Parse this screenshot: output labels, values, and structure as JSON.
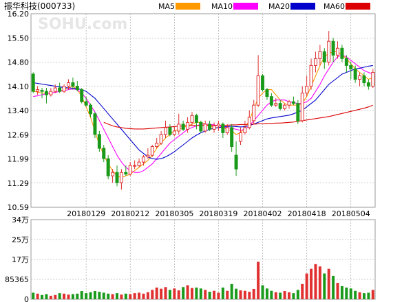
{
  "title": "振华科技(000733)",
  "watermark": "SOHU.com",
  "legend": [
    {
      "name": "MA5",
      "color": "#ff9900"
    },
    {
      "name": "MA10",
      "color": "#ff00ff"
    },
    {
      "name": "MA20",
      "color": "#0000cc"
    },
    {
      "name": "MA60",
      "color": "#dd0000"
    }
  ],
  "colors": {
    "up": "#e03030",
    "down": "#1a9a1a",
    "grid": "#9a9a9a",
    "bg": "#ffffff"
  },
  "chart_data": [
    {
      "type": "candlestick",
      "y_ticks": [
        "16.20",
        "15.50",
        "14.80",
        "14.10",
        "13.40",
        "12.69",
        "11.99",
        "11.29",
        "10.59"
      ],
      "ylim": [
        10.59,
        16.2
      ],
      "x_tick_labels": [
        {
          "label": "20180129",
          "index": 12
        },
        {
          "label": "20180212",
          "index": 22
        },
        {
          "label": "20180305",
          "index": 32
        },
        {
          "label": "20180319",
          "index": 42
        },
        {
          "label": "20180402",
          "index": 52
        },
        {
          "label": "20180418",
          "index": 62
        },
        {
          "label": "20180504",
          "index": 72
        }
      ],
      "candles": [
        [
          14.45,
          13.95,
          14.5,
          13.9
        ],
        [
          13.95,
          14.0,
          14.1,
          13.85
        ],
        [
          13.98,
          13.95,
          14.05,
          13.75
        ],
        [
          13.95,
          13.85,
          14.05,
          13.6
        ],
        [
          13.85,
          13.95,
          14.05,
          13.8
        ],
        [
          13.95,
          14.05,
          14.15,
          13.9
        ],
        [
          14.05,
          13.95,
          14.2,
          13.9
        ],
        [
          13.95,
          14.1,
          14.15,
          13.9
        ],
        [
          14.1,
          14.2,
          14.3,
          14.0
        ],
        [
          14.2,
          14.1,
          14.35,
          14.0
        ],
        [
          14.1,
          14.0,
          14.25,
          13.95
        ],
        [
          14.0,
          13.65,
          14.05,
          13.6
        ],
        [
          13.65,
          13.55,
          13.8,
          13.5
        ],
        [
          13.55,
          13.3,
          13.6,
          13.2
        ],
        [
          13.3,
          12.7,
          13.35,
          12.6
        ],
        [
          12.7,
          12.3,
          12.8,
          12.2
        ],
        [
          12.3,
          12.0,
          12.4,
          11.9
        ],
        [
          12.0,
          11.5,
          12.1,
          11.4
        ],
        [
          11.5,
          11.6,
          11.7,
          11.3
        ],
        [
          11.6,
          11.3,
          11.8,
          11.2
        ],
        [
          11.3,
          11.6,
          11.7,
          11.1
        ],
        [
          11.6,
          11.55,
          11.8,
          11.5
        ],
        [
          11.55,
          11.8,
          11.9,
          11.5
        ],
        [
          11.8,
          11.8,
          11.95,
          11.7
        ],
        [
          11.8,
          11.9,
          12.0,
          11.75
        ],
        [
          11.9,
          12.05,
          12.1,
          11.8
        ],
        [
          12.05,
          12.1,
          12.3,
          12.0
        ],
        [
          12.1,
          12.35,
          12.4,
          12.05
        ],
        [
          12.35,
          12.45,
          12.6,
          12.3
        ],
        [
          12.45,
          12.7,
          12.8,
          12.4
        ],
        [
          12.7,
          12.9,
          13.1,
          12.6
        ],
        [
          12.9,
          12.7,
          13.0,
          12.65
        ],
        [
          12.7,
          12.8,
          12.95,
          12.65
        ],
        [
          12.8,
          13.0,
          13.3,
          12.7
        ],
        [
          13.0,
          12.85,
          13.1,
          12.8
        ],
        [
          12.85,
          13.05,
          13.2,
          12.75
        ],
        [
          13.05,
          13.25,
          13.35,
          12.95
        ],
        [
          13.25,
          13.05,
          13.3,
          12.85
        ],
        [
          13.05,
          12.8,
          13.1,
          12.75
        ],
        [
          12.8,
          13.0,
          13.1,
          12.75
        ],
        [
          13.0,
          12.85,
          13.1,
          12.8
        ],
        [
          12.85,
          12.95,
          13.05,
          12.75
        ],
        [
          12.95,
          13.0,
          13.1,
          12.8
        ],
        [
          13.0,
          12.75,
          13.05,
          12.6
        ],
        [
          12.75,
          12.9,
          13.0,
          12.7
        ],
        [
          12.9,
          12.35,
          13.0,
          12.2
        ],
        [
          12.1,
          11.7,
          12.5,
          11.5
        ],
        [
          12.5,
          12.75,
          12.9,
          12.4
        ],
        [
          12.75,
          12.9,
          13.1,
          12.7
        ],
        [
          12.9,
          13.2,
          13.4,
          12.85
        ],
        [
          13.1,
          13.55,
          13.7,
          13.0
        ],
        [
          13.55,
          14.4,
          15.0,
          13.5
        ],
        [
          14.4,
          14.0,
          14.45,
          13.95
        ],
        [
          14.0,
          13.8,
          14.05,
          13.7
        ],
        [
          13.8,
          13.55,
          13.9,
          13.5
        ],
        [
          13.55,
          13.6,
          13.75,
          13.5
        ],
        [
          13.6,
          13.45,
          13.7,
          13.4
        ],
        [
          13.45,
          13.55,
          13.6,
          13.4
        ],
        [
          13.55,
          13.65,
          13.7,
          13.45
        ],
        [
          13.65,
          13.6,
          13.8,
          13.55
        ],
        [
          13.6,
          13.1,
          13.7,
          13.0
        ],
        [
          13.1,
          13.9,
          14.1,
          13.05
        ],
        [
          13.9,
          14.1,
          14.4,
          13.8
        ],
        [
          14.1,
          14.7,
          14.9,
          14.0
        ],
        [
          14.7,
          14.9,
          15.1,
          14.5
        ],
        [
          14.9,
          15.1,
          15.3,
          14.7
        ],
        [
          15.1,
          14.8,
          15.2,
          14.6
        ],
        [
          14.8,
          15.4,
          15.7,
          14.7
        ],
        [
          15.4,
          15.0,
          15.5,
          14.8
        ],
        [
          15.0,
          15.2,
          15.4,
          14.9
        ],
        [
          15.2,
          14.9,
          15.3,
          14.8
        ],
        [
          14.9,
          14.7,
          15.0,
          14.5
        ],
        [
          14.7,
          14.6,
          14.8,
          14.3
        ],
        [
          14.6,
          14.3,
          14.7,
          14.2
        ],
        [
          14.3,
          14.4,
          14.5,
          14.1
        ],
        [
          14.4,
          14.2,
          14.5,
          14.1
        ],
        [
          14.2,
          14.1,
          14.3,
          14.0
        ],
        [
          14.1,
          14.5,
          14.6,
          14.05
        ]
      ],
      "ma": {
        "MA5": [
          13.95,
          13.93,
          13.9,
          13.9,
          13.9,
          13.92,
          13.95,
          14.0,
          14.05,
          14.1,
          14.0,
          13.8,
          13.5,
          13.2,
          12.8,
          12.4,
          12.1,
          11.85,
          11.65,
          11.5,
          11.45,
          11.5,
          11.55,
          11.65,
          11.75,
          11.85,
          11.95,
          12.1,
          12.3,
          12.45,
          12.6,
          12.7,
          12.8,
          12.85,
          12.9,
          12.95,
          13.0,
          13.05,
          13.05,
          13.0,
          12.95,
          12.9,
          12.9,
          12.9,
          12.85,
          12.8,
          12.7,
          12.75,
          12.9,
          13.1,
          13.45,
          13.75,
          13.9,
          14.0,
          14.0,
          13.85,
          13.7,
          13.6,
          13.55,
          13.55,
          13.55,
          13.6,
          13.8,
          14.1,
          14.4,
          14.7,
          14.95,
          15.05,
          15.1,
          15.1,
          15.0,
          14.9,
          14.75,
          14.6,
          14.5,
          14.4,
          14.3,
          14.35
        ],
        "MA10": [
          13.8,
          13.82,
          13.85,
          13.88,
          13.9,
          13.92,
          13.95,
          13.97,
          14.0,
          14.02,
          14.0,
          13.9,
          13.75,
          13.55,
          13.35,
          13.1,
          12.85,
          12.6,
          12.35,
          12.1,
          11.9,
          11.75,
          11.65,
          11.6,
          11.6,
          11.65,
          11.75,
          11.85,
          12.0,
          12.15,
          12.3,
          12.45,
          12.55,
          12.65,
          12.75,
          12.85,
          12.9,
          12.95,
          13.0,
          13.0,
          13.0,
          12.98,
          12.95,
          12.92,
          12.9,
          12.88,
          12.85,
          12.82,
          12.85,
          12.95,
          13.1,
          13.25,
          13.4,
          13.55,
          13.65,
          13.7,
          13.7,
          13.7,
          13.65,
          13.62,
          13.6,
          13.6,
          13.65,
          13.75,
          13.95,
          14.15,
          14.4,
          14.6,
          14.8,
          14.95,
          15.0,
          14.95,
          14.85,
          14.75,
          14.65,
          14.55,
          14.5,
          14.45
        ],
        "MA20": [
          14.2,
          14.18,
          14.16,
          14.14,
          14.12,
          14.1,
          14.08,
          14.06,
          14.05,
          14.04,
          14.03,
          14.0,
          13.95,
          13.85,
          13.75,
          13.6,
          13.45,
          13.3,
          13.15,
          13.0,
          12.85,
          12.7,
          12.55,
          12.4,
          12.25,
          12.15,
          12.05,
          12.0,
          11.98,
          12.0,
          12.05,
          12.12,
          12.2,
          12.3,
          12.4,
          12.5,
          12.6,
          12.68,
          12.75,
          12.8,
          12.85,
          12.88,
          12.9,
          12.92,
          12.93,
          12.94,
          12.93,
          12.92,
          12.93,
          12.96,
          13.0,
          13.05,
          13.1,
          13.15,
          13.18,
          13.2,
          13.22,
          13.24,
          13.26,
          13.3,
          13.35,
          13.4,
          13.5,
          13.6,
          13.7,
          13.85,
          14.0,
          14.15,
          14.25,
          14.35,
          14.45,
          14.5,
          14.55,
          14.6,
          14.62,
          14.65,
          14.68,
          14.7
        ],
        "MA60": [
          null,
          null,
          null,
          null,
          null,
          null,
          null,
          null,
          null,
          null,
          null,
          null,
          null,
          null,
          null,
          null,
          13.05,
          13.0,
          12.95,
          12.92,
          12.9,
          12.88,
          12.87,
          12.86,
          12.86,
          12.86,
          12.87,
          12.88,
          12.89,
          12.9,
          12.91,
          12.92,
          12.93,
          12.94,
          12.95,
          12.96,
          12.96,
          12.96,
          12.96,
          12.96,
          12.96,
          12.96,
          12.96,
          12.96,
          12.97,
          12.98,
          12.98,
          12.99,
          12.99,
          13.0,
          13.0,
          13.01,
          13.01,
          13.02,
          13.02,
          13.03,
          13.03,
          13.04,
          13.05,
          13.06,
          13.08,
          13.1,
          13.12,
          13.14,
          13.16,
          13.18,
          13.2,
          13.22,
          13.25,
          13.28,
          13.31,
          13.34,
          13.37,
          13.4,
          13.43,
          13.46,
          13.5,
          13.55
        ]
      }
    },
    {
      "type": "bar",
      "y_ticks": [
        "34万",
        "25万",
        "17万",
        "85365",
        "0"
      ],
      "ylim": [
        0,
        340000
      ],
      "values": [
        28000,
        24000,
        18000,
        22000,
        15000,
        18000,
        26000,
        24000,
        20000,
        22000,
        24000,
        35000,
        26000,
        30000,
        35000,
        32000,
        28000,
        24000,
        22000,
        26000,
        20000,
        24000,
        22000,
        26000,
        28000,
        24000,
        30000,
        40000,
        50000,
        45000,
        52000,
        40000,
        46000,
        38000,
        52000,
        60000,
        48000,
        50000,
        46000,
        40000,
        32000,
        36000,
        28000,
        50000,
        36000,
        65000,
        45000,
        38000,
        36000,
        32000,
        44000,
        160000,
        60000,
        46000,
        36000,
        30000,
        28000,
        35000,
        30000,
        26000,
        40000,
        65000,
        110000,
        130000,
        150000,
        140000,
        110000,
        130000,
        100000,
        70000,
        56000,
        50000,
        46000,
        36000,
        30000,
        26000,
        28000,
        40000
      ],
      "colors_by_candle": true
    }
  ]
}
